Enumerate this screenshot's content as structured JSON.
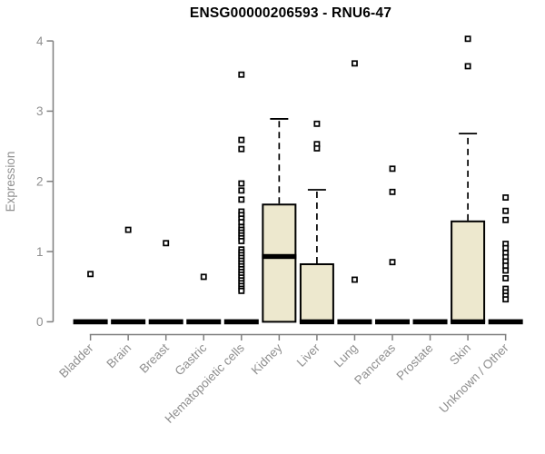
{
  "chart_data": {
    "type": "boxplot",
    "title": "ENSG00000206593 - RNU6-47",
    "ylabel": "Expression",
    "xlabel": "",
    "ylim": [
      0,
      4.1
    ],
    "yticks": [
      0,
      1,
      2,
      3,
      4
    ],
    "grid": false,
    "legend": "none",
    "box_fill": "#ede8ce",
    "box_stroke": "#000000",
    "axis_color": "#7f7f7f",
    "label_color": "#8f8f8f",
    "categories": [
      "Bladder",
      "Brain",
      "Breast",
      "Gastric",
      "Hematopoietic cells",
      "Kidney",
      "Liver",
      "Lung",
      "Pancreas",
      "Prostate",
      "Skin",
      "Unknown / Other"
    ],
    "series": [
      {
        "name": "Bladder",
        "q1": 0,
        "median": 0,
        "q3": 0,
        "whisker_low": 0,
        "whisker_high": 0,
        "outliers": [
          0.68
        ]
      },
      {
        "name": "Brain",
        "q1": 0,
        "median": 0,
        "q3": 0,
        "whisker_low": 0,
        "whisker_high": 0,
        "outliers": [
          1.31
        ]
      },
      {
        "name": "Breast",
        "q1": 0,
        "median": 0,
        "q3": 0,
        "whisker_low": 0,
        "whisker_high": 0,
        "outliers": [
          1.12
        ]
      },
      {
        "name": "Gastric",
        "q1": 0,
        "median": 0,
        "q3": 0,
        "whisker_low": 0,
        "whisker_high": 0,
        "outliers": [
          0.64
        ]
      },
      {
        "name": "Hematopoietic cells",
        "q1": 0,
        "median": 0,
        "q3": 0,
        "whisker_low": 0,
        "whisker_high": 0,
        "outliers": [
          3.52,
          2.59,
          2.46,
          1.97,
          1.87,
          1.74,
          1.57,
          1.52,
          1.47,
          1.42,
          1.35,
          1.31,
          1.27,
          1.23,
          1.19,
          1.15,
          1.03,
          0.99,
          0.95,
          0.91,
          0.87,
          0.83,
          0.79,
          0.75,
          0.71,
          0.67,
          0.63,
          0.59,
          0.55,
          0.51,
          0.47,
          0.44
        ]
      },
      {
        "name": "Kidney",
        "q1": 0,
        "median": 0.93,
        "q3": 1.67,
        "whisker_low": 0,
        "whisker_high": 2.89,
        "outliers": []
      },
      {
        "name": "Liver",
        "q1": 0,
        "median": 0,
        "q3": 0.82,
        "whisker_low": 0,
        "whisker_high": 1.88,
        "outliers": [
          2.82,
          2.53,
          2.47
        ]
      },
      {
        "name": "Lung",
        "q1": 0,
        "median": 0,
        "q3": 0,
        "whisker_low": 0,
        "whisker_high": 0,
        "outliers": [
          3.68,
          0.6
        ]
      },
      {
        "name": "Pancreas",
        "q1": 0,
        "median": 0,
        "q3": 0,
        "whisker_low": 0,
        "whisker_high": 0,
        "outliers": [
          2.18,
          1.85,
          0.85
        ]
      },
      {
        "name": "Prostate",
        "q1": 0,
        "median": 0,
        "q3": 0,
        "whisker_low": 0,
        "whisker_high": 0,
        "outliers": []
      },
      {
        "name": "Skin",
        "q1": 0,
        "median": 0,
        "q3": 1.43,
        "whisker_low": 0,
        "whisker_high": 2.68,
        "outliers": [
          4.03,
          3.64
        ]
      },
      {
        "name": "Unknown / Other",
        "q1": 0,
        "median": 0,
        "q3": 0,
        "whisker_low": 0,
        "whisker_high": 0,
        "outliers": [
          1.77,
          1.58,
          1.45,
          1.11,
          1.05,
          0.98,
          0.92,
          0.86,
          0.8,
          0.73,
          0.62,
          0.47,
          0.42,
          0.37,
          0.32
        ]
      }
    ]
  }
}
